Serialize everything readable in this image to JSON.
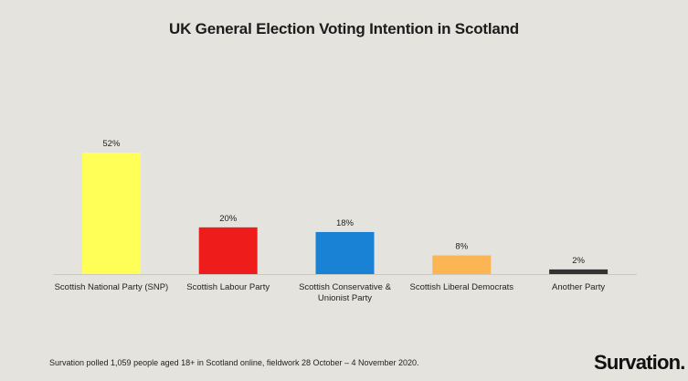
{
  "title": "UK General Election Voting Intention in Scotland",
  "footnote": "Survation polled 1,059 people aged 18+ in Scotland online, fieldwork 28 October – 4 November 2020.",
  "brand": "Survation.",
  "chart_data": {
    "type": "bar",
    "title": "UK General Election Voting Intention in Scotland",
    "xlabel": "",
    "ylabel": "",
    "ylim": [
      0,
      52
    ],
    "grid": false,
    "legend": "none",
    "categories": [
      [
        "Scottish National Party (SNP)"
      ],
      [
        "Scottish Labour Party"
      ],
      [
        "Scottish Conservative &",
        "Unionist Party"
      ],
      [
        "Scottish Liberal Democrats"
      ],
      [
        "Another Party"
      ]
    ],
    "values": [
      52,
      20,
      18,
      8,
      2
    ],
    "value_labels": [
      "52%",
      "20%",
      "18%",
      "8%",
      "2%"
    ],
    "colors": [
      "#ffff57",
      "#ef1c1c",
      "#1a82d4",
      "#fbb552",
      "#333333"
    ]
  }
}
